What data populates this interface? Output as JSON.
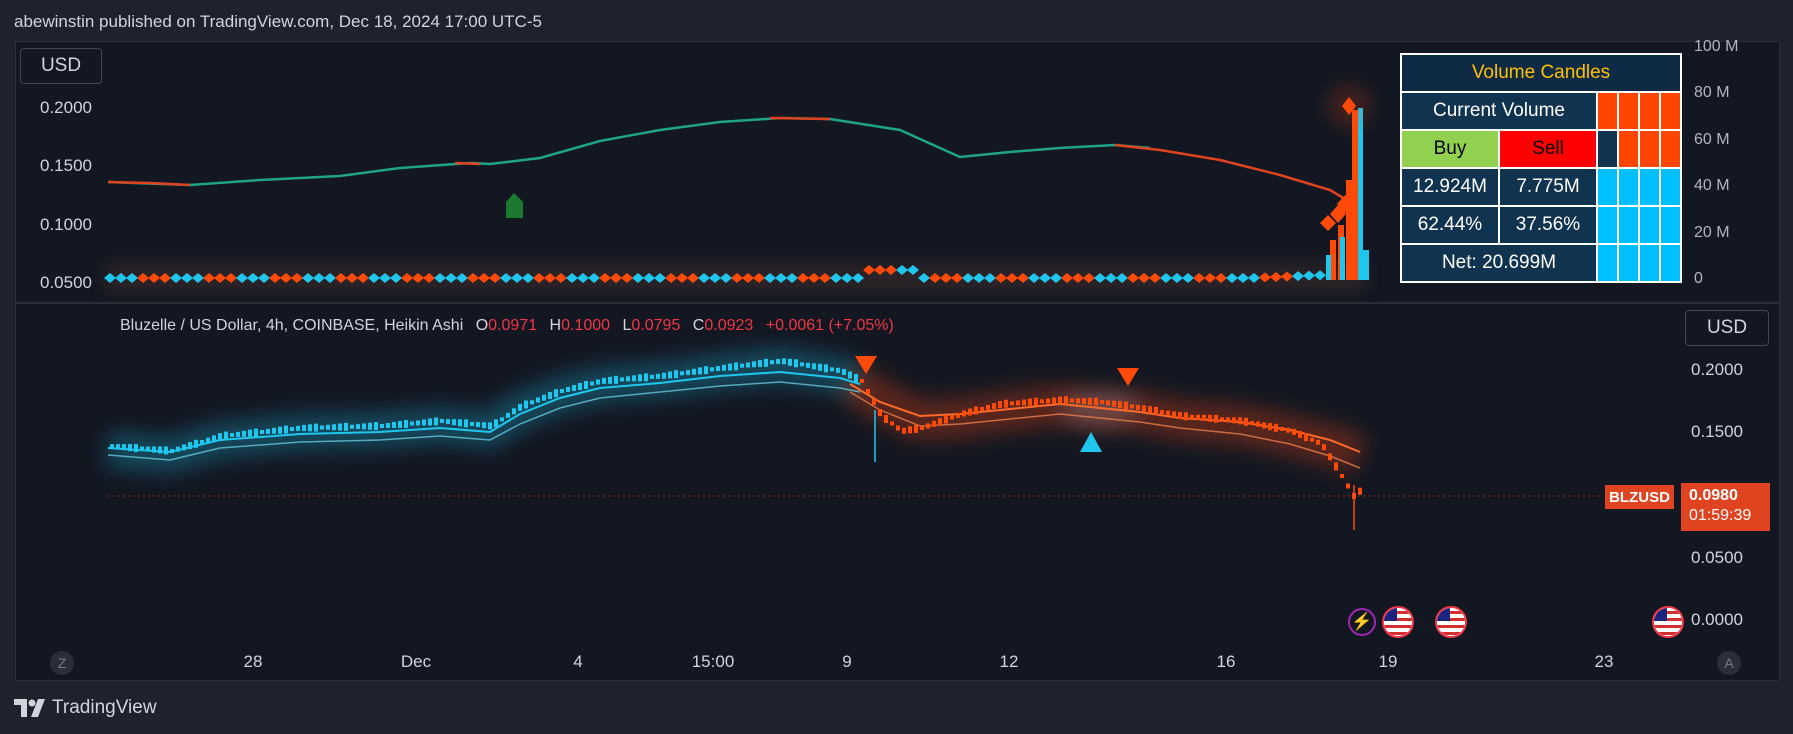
{
  "header": {
    "publish_info": "abewinstin published on TradingView.com, Dec 18, 2024 17:00 UTC-5"
  },
  "upper_pane": {
    "currency_button": "USD",
    "price_axis": [
      "0.2000",
      "0.1500",
      "0.1000",
      "0.0500"
    ],
    "volume_axis": [
      "100 M",
      "80 M",
      "60 M",
      "40 M",
      "20 M",
      "0"
    ]
  },
  "volume_table": {
    "title": "Volume Candles",
    "current_volume_label": "Current Volume",
    "buy_label": "Buy",
    "sell_label": "Sell",
    "buy_volume": "12.924M",
    "sell_volume": "7.775M",
    "buy_percent": "62.44%",
    "sell_percent": "37.56%",
    "net": "Net: 20.699M"
  },
  "main_pane": {
    "currency_button": "USD",
    "legend": {
      "title": "Bluzelle / US Dollar, 4h, COINBASE, Heikin Ashi",
      "open_label": "O",
      "open": "0.0971",
      "high_label": "H",
      "high": "0.1000",
      "low_label": "L",
      "low": "0.0795",
      "close_label": "C",
      "close": "0.0923",
      "change": "+0.0061 (+7.05%)"
    },
    "price_axis": [
      "0.2000",
      "0.1500",
      "0.0500",
      "0.0000"
    ],
    "symbol_tag": "BLZUSD",
    "last_price": "0.0980",
    "countdown": "01:59:39"
  },
  "time_axis": [
    "28",
    "Dec",
    "4",
    "15:00",
    "9",
    "12",
    "16",
    "19",
    "23"
  ],
  "nav_buttons": {
    "left": "Z",
    "right": "A"
  },
  "footer": {
    "brand": "TradingView"
  },
  "colors": {
    "bull": "#1fc7ef",
    "bear": "#ff4a0a",
    "background": "#131722",
    "title": "#ffc000"
  }
}
